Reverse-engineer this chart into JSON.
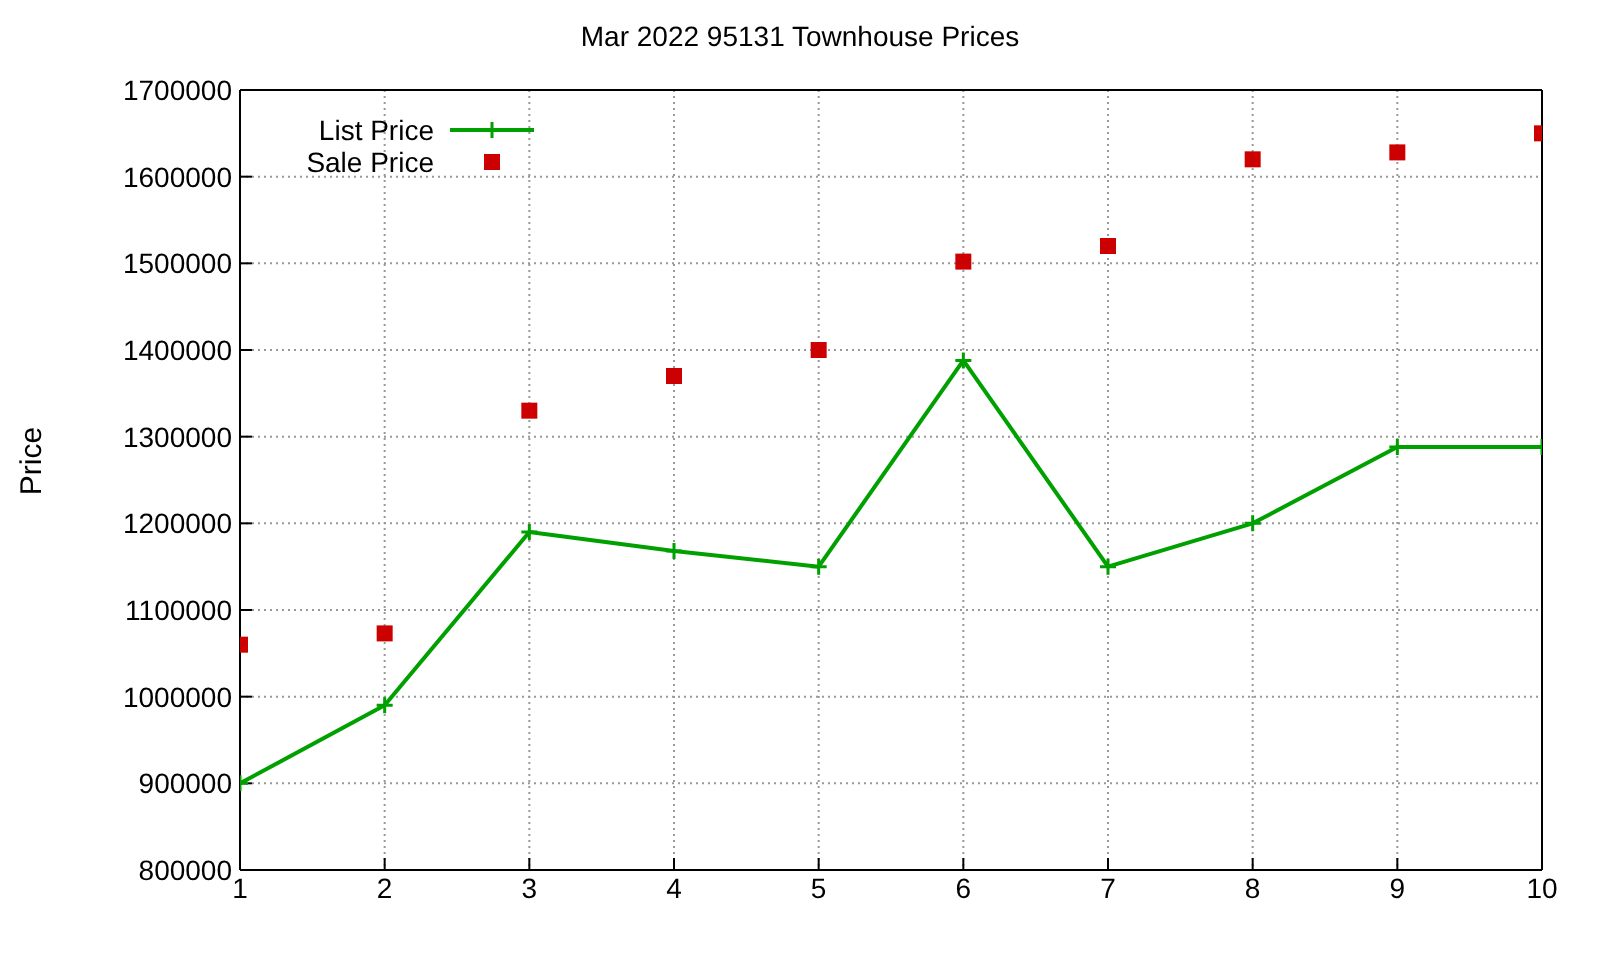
{
  "chart_data": {
    "type": "line",
    "title": "Mar 2022 95131 Townhouse Prices",
    "ylabel": "Price",
    "x": [
      1,
      2,
      3,
      4,
      5,
      6,
      7,
      8,
      9,
      10
    ],
    "series": [
      {
        "name": "List Price",
        "color": "#00a000",
        "marker": "cross",
        "values": [
          900000,
          990000,
          1190000,
          1168000,
          1150000,
          1388000,
          1150000,
          1200000,
          1288000,
          1288000
        ]
      },
      {
        "name": "Sale Price",
        "type": "scatter",
        "color": "#cc0000",
        "marker": "square",
        "values": [
          1060000,
          1073000,
          1330000,
          1370000,
          1400000,
          1502000,
          1520000,
          1620000,
          1628000,
          1650000
        ]
      }
    ],
    "xlim": [
      1,
      10
    ],
    "xticks": [
      1,
      2,
      3,
      4,
      5,
      6,
      7,
      8,
      9,
      10
    ],
    "ylim": [
      800000,
      1700000
    ],
    "yticks": [
      800000,
      900000,
      1000000,
      1100000,
      1200000,
      1300000,
      1400000,
      1500000,
      1600000,
      1700000
    ],
    "grid": true,
    "legend": "top left"
  }
}
